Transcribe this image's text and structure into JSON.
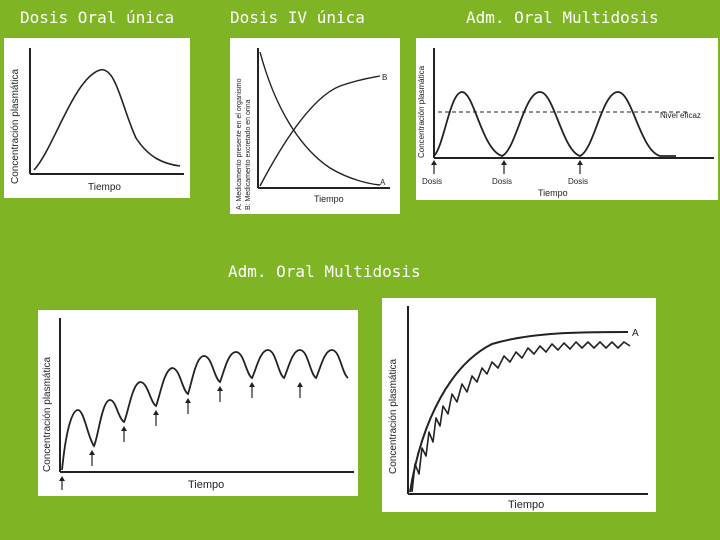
{
  "titles": {
    "t1": "Dosis Oral única",
    "t2": "Dosis IV única",
    "t3": "Adm. Oral Multidosis",
    "t4": "Adm. Oral Multidosis"
  },
  "panel1": {
    "ylabel": "Concentración plasmática",
    "xlabel": "Tiempo"
  },
  "panel2": {
    "ylabel_a": "A: Medicamento presente en el organismo",
    "ylabel_b": "B: Medicamento excretado en orina",
    "xlabel": "Tiempo",
    "curve_b_label": "B",
    "curve_a_label": "A"
  },
  "panel3": {
    "ylabel": "Concentración plasmática",
    "xlabel": "Tiempo",
    "level_label": "Nivel eficaz",
    "dose_labels": [
      "Dosis",
      "Dosis",
      "Dosis"
    ]
  },
  "panel4": {
    "ylabel": "Concentración plasmática",
    "xlabel": "Tiempo"
  },
  "panel5": {
    "ylabel": "Concentración plasmática",
    "xlabel": "Tiempo",
    "curve_label": "A"
  },
  "colors": {
    "background": "#7fb524",
    "title_text": "#ffffff",
    "curve": "#222222"
  }
}
